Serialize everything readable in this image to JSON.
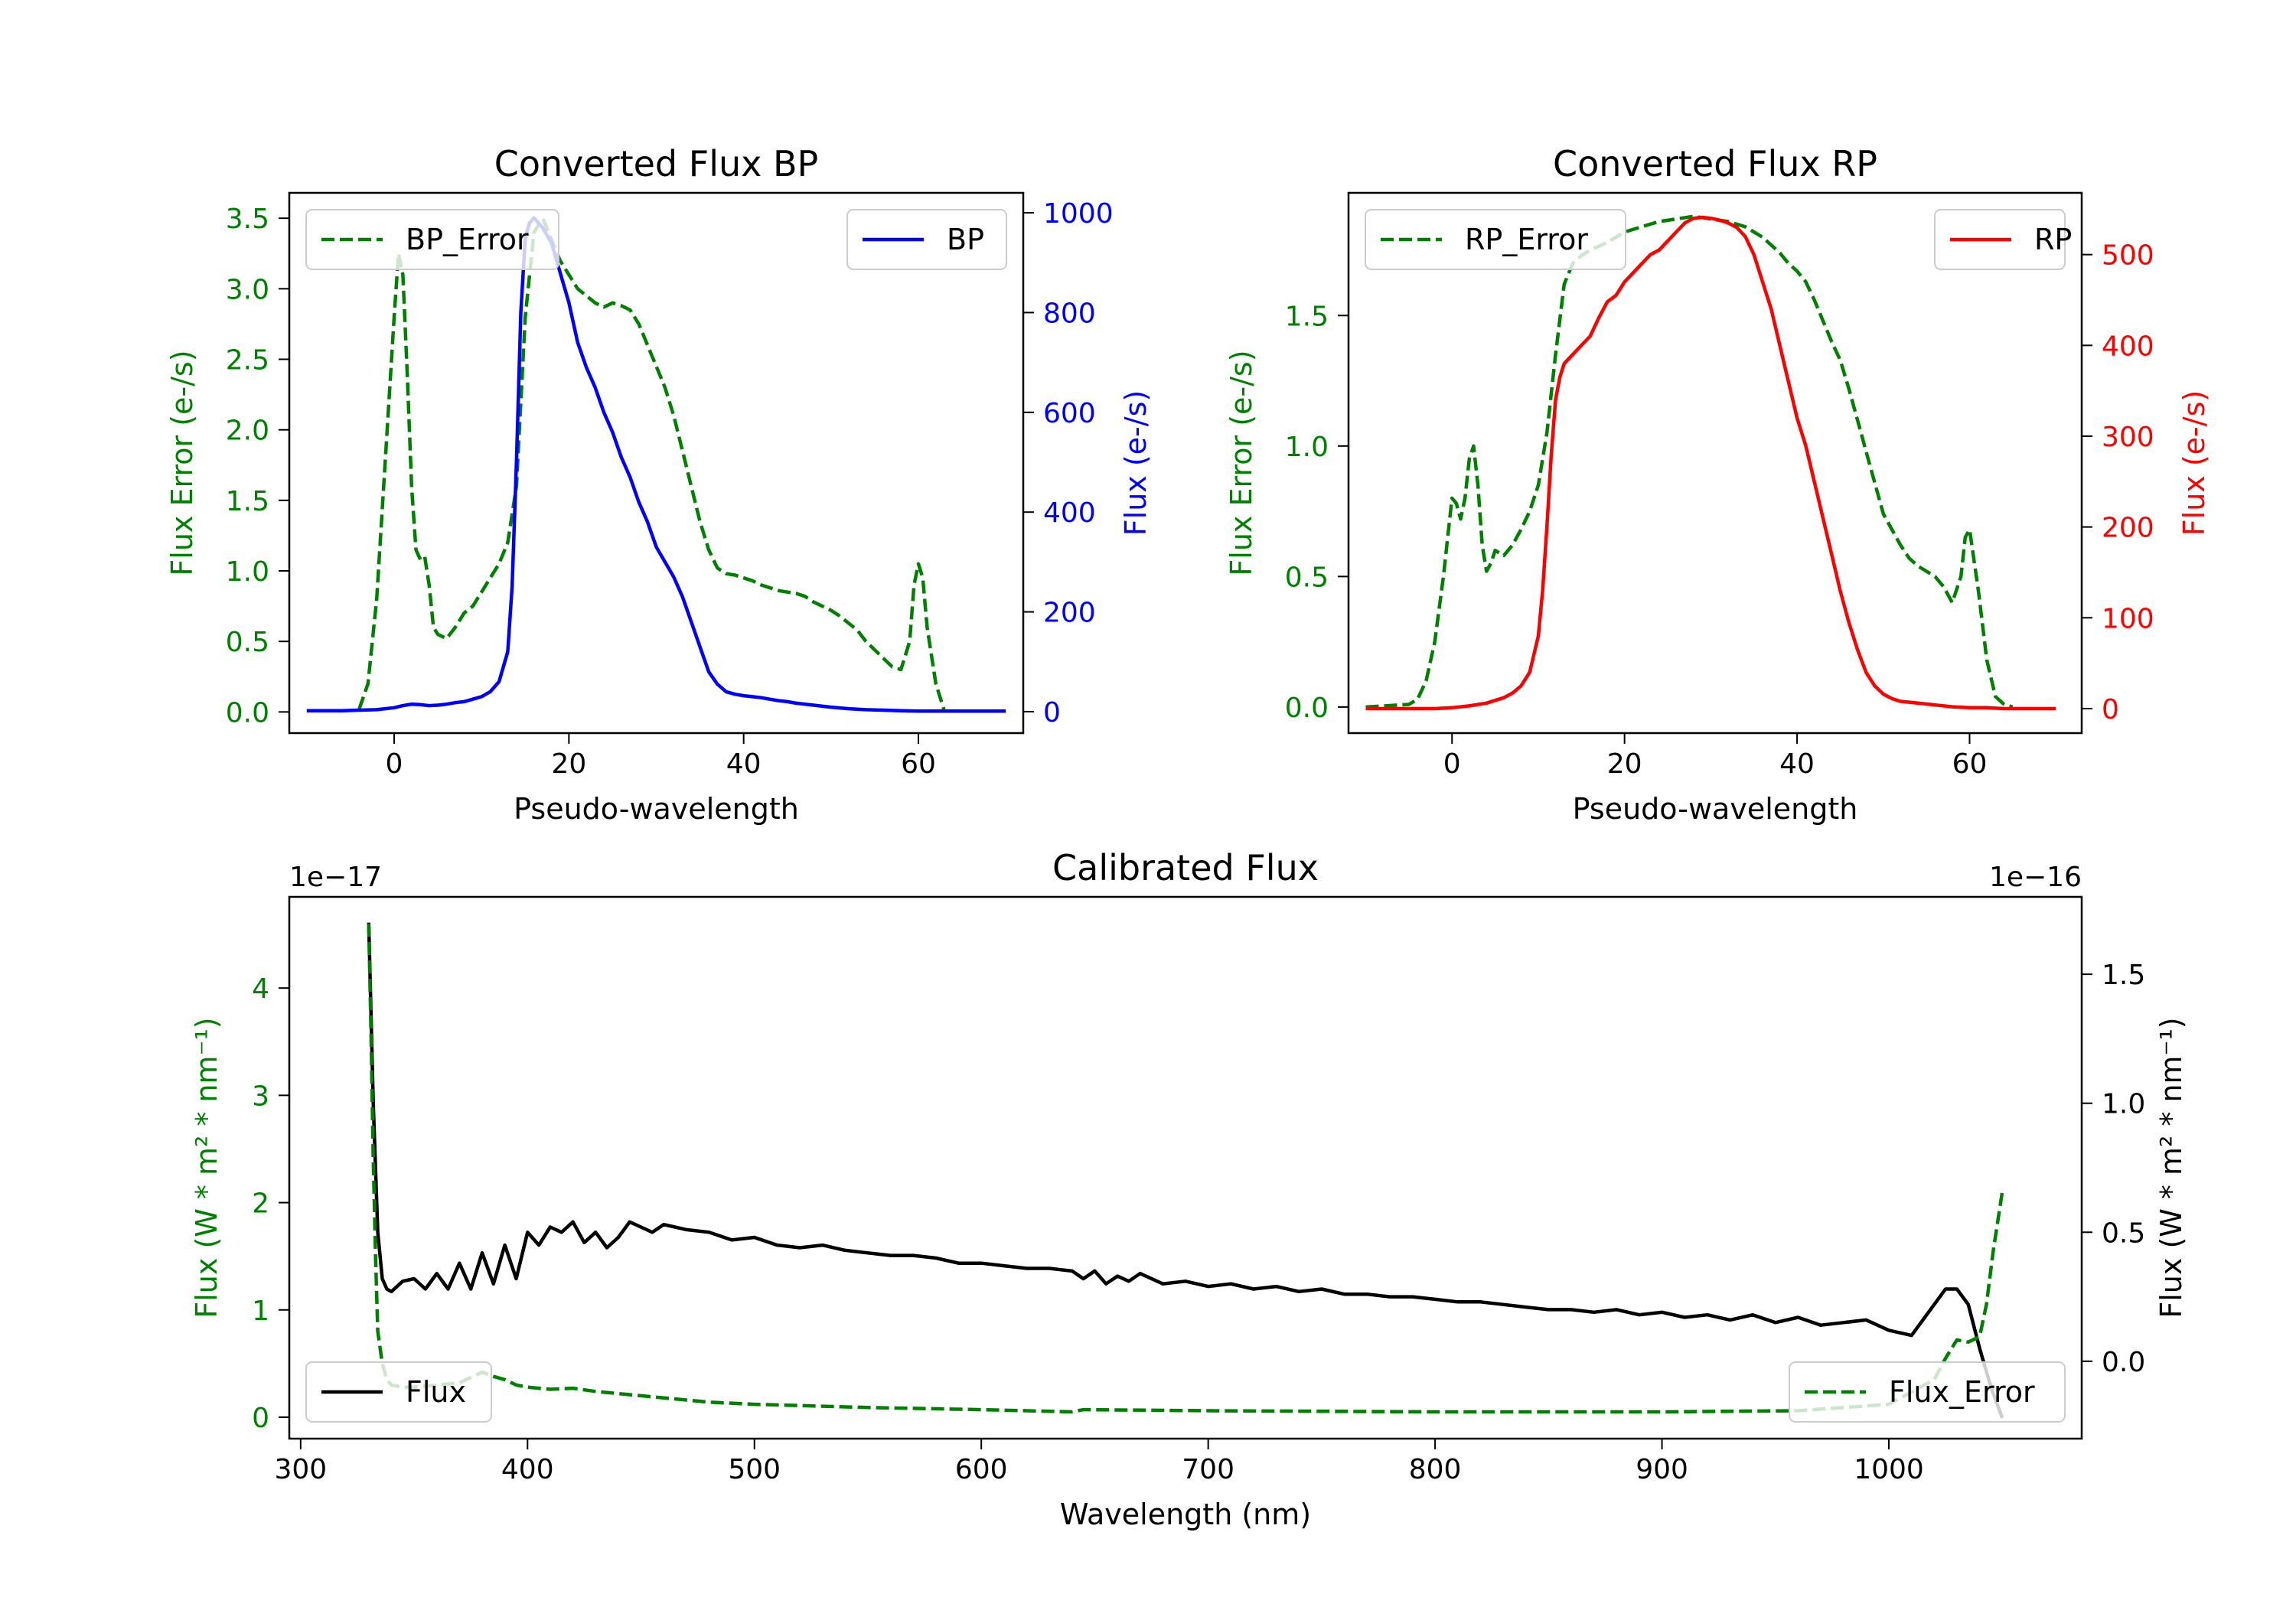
{
  "chart_data": [
    {
      "id": "bp",
      "type": "line",
      "title": "Converted Flux BP",
      "xlabel": "Pseudo-wavelength",
      "xlim": [
        -12,
        72
      ],
      "xticks": [
        0,
        20,
        40,
        60
      ],
      "left_axis": {
        "label": "Flux Error (e-/s)",
        "color": "#008000",
        "lim": [
          -0.15,
          3.68
        ],
        "ticks": [
          0.0,
          0.5,
          1.0,
          1.5,
          2.0,
          2.5,
          3.0,
          3.5
        ],
        "tick_labels": [
          "0.0",
          "0.5",
          "1.0",
          "1.5",
          "2.0",
          "2.5",
          "3.0",
          "3.5"
        ]
      },
      "right_axis": {
        "label": "Flux (e-/s)",
        "color": "#0000ff",
        "lim": [
          -43,
          1040
        ],
        "ticks": [
          0,
          200,
          400,
          600,
          800,
          1000
        ],
        "tick_labels": [
          "0",
          "200",
          "400",
          "600",
          "800",
          "1000"
        ]
      },
      "series": [
        {
          "name": "BP_Error",
          "axis": "left",
          "color": "#008000",
          "dash": true,
          "x": [
            -4,
            -3,
            -2,
            -1,
            0,
            0.5,
            1,
            1.5,
            2,
            2.5,
            3,
            3.5,
            4,
            4.5,
            5,
            6,
            7,
            8,
            9,
            10,
            11,
            12,
            13,
            14,
            15,
            16,
            17,
            18,
            19,
            20,
            21,
            22,
            23,
            24,
            25,
            26,
            27,
            28,
            29,
            30,
            31,
            32,
            33,
            34,
            35,
            36,
            37,
            38,
            39,
            40,
            41,
            42,
            43,
            44,
            45,
            46,
            47,
            48,
            49,
            50,
            51,
            52,
            53,
            54,
            55,
            56,
            57,
            58,
            59,
            59.5,
            60,
            60.5,
            61,
            62,
            63
          ],
          "values": [
            0.02,
            0.2,
            0.8,
            1.8,
            2.8,
            3.25,
            3.1,
            2.4,
            1.6,
            1.15,
            1.08,
            1.1,
            0.9,
            0.6,
            0.55,
            0.52,
            0.6,
            0.7,
            0.75,
            0.85,
            0.95,
            1.05,
            1.2,
            1.6,
            2.8,
            3.4,
            3.5,
            3.35,
            3.2,
            3.1,
            3.0,
            2.95,
            2.9,
            2.87,
            2.9,
            2.88,
            2.85,
            2.75,
            2.6,
            2.45,
            2.3,
            2.1,
            1.85,
            1.6,
            1.35,
            1.15,
            1.02,
            0.98,
            0.97,
            0.95,
            0.93,
            0.9,
            0.88,
            0.86,
            0.85,
            0.84,
            0.82,
            0.78,
            0.75,
            0.72,
            0.68,
            0.63,
            0.58,
            0.5,
            0.44,
            0.38,
            0.32,
            0.3,
            0.5,
            0.9,
            1.05,
            0.95,
            0.6,
            0.2,
            0.0
          ]
        },
        {
          "name": "BP",
          "axis": "right",
          "color": "#0000ff",
          "dash": false,
          "x": [
            -10,
            -6,
            -4,
            -2,
            0,
            1,
            2,
            3,
            4,
            5,
            6,
            7,
            8,
            9,
            10,
            11,
            12,
            13,
            13.5,
            14,
            14.5,
            15,
            15.5,
            16,
            17,
            18,
            19,
            20,
            21,
            22,
            23,
            24,
            25,
            26,
            27,
            28,
            29,
            30,
            31,
            32,
            33,
            34,
            35,
            36,
            37,
            38,
            39,
            40,
            41,
            42,
            43,
            44,
            45,
            46,
            47,
            48,
            50,
            52,
            54,
            56,
            58,
            60,
            62,
            64,
            66,
            68,
            70
          ],
          "values": [
            2,
            2,
            3,
            4,
            8,
            12,
            15,
            14,
            12,
            13,
            15,
            18,
            20,
            25,
            30,
            40,
            60,
            120,
            250,
            500,
            800,
            950,
            980,
            990,
            970,
            940,
            880,
            820,
            740,
            690,
            650,
            600,
            560,
            510,
            470,
            420,
            380,
            330,
            300,
            270,
            230,
            180,
            130,
            80,
            55,
            40,
            35,
            32,
            30,
            28,
            25,
            22,
            20,
            17,
            15,
            13,
            9,
            6,
            4,
            3,
            2,
            1,
            1,
            1,
            1,
            1,
            1
          ]
        }
      ],
      "legends": [
        {
          "label": "BP_Error",
          "position": "upper-left"
        },
        {
          "label": "BP",
          "position": "upper-right"
        }
      ]
    },
    {
      "id": "rp",
      "type": "line",
      "title": "Converted Flux RP",
      "xlabel": "Pseudo-wavelength",
      "xlim": [
        -12,
        73
      ],
      "xticks": [
        0,
        20,
        40,
        60
      ],
      "left_axis": {
        "label": "Flux Error (e-/s)",
        "color": "#008000",
        "lim": [
          -0.1,
          1.97
        ],
        "ticks": [
          0.0,
          0.5,
          1.0,
          1.5
        ],
        "tick_labels": [
          "0.0",
          "0.5",
          "1.0",
          "1.5"
        ]
      },
      "right_axis": {
        "label": "Flux (e-/s)",
        "color": "#ff0000",
        "lim": [
          -27,
          568
        ],
        "ticks": [
          0,
          100,
          200,
          300,
          400,
          500
        ],
        "tick_labels": [
          "0",
          "100",
          "200",
          "300",
          "400",
          "500"
        ]
      },
      "series": [
        {
          "name": "RP_Error",
          "axis": "left",
          "color": "#008000",
          "dash": true,
          "x": [
            -10,
            -5,
            -4,
            -3,
            -2,
            -1,
            0,
            0.5,
            1,
            1.5,
            2,
            2.5,
            3,
            3.5,
            4,
            4.5,
            5,
            6,
            7,
            8,
            9,
            10,
            11,
            12,
            13,
            14,
            15,
            16,
            18,
            20,
            22,
            24,
            26,
            28,
            30,
            32,
            34,
            36,
            37,
            38,
            39,
            40,
            41,
            42,
            43,
            44,
            45,
            46,
            47,
            48,
            49,
            50,
            51,
            52,
            53,
            54,
            55,
            56,
            57,
            58,
            59,
            59.5,
            60,
            61,
            62,
            63,
            64,
            65
          ],
          "values": [
            0.0,
            0.01,
            0.03,
            0.1,
            0.25,
            0.5,
            0.8,
            0.78,
            0.72,
            0.8,
            0.95,
            1.0,
            0.85,
            0.62,
            0.52,
            0.55,
            0.6,
            0.58,
            0.62,
            0.68,
            0.75,
            0.85,
            1.05,
            1.35,
            1.62,
            1.7,
            1.73,
            1.75,
            1.78,
            1.82,
            1.84,
            1.86,
            1.87,
            1.88,
            1.87,
            1.86,
            1.84,
            1.8,
            1.77,
            1.74,
            1.7,
            1.67,
            1.63,
            1.56,
            1.48,
            1.4,
            1.33,
            1.22,
            1.1,
            0.98,
            0.86,
            0.74,
            0.68,
            0.62,
            0.57,
            0.54,
            0.52,
            0.5,
            0.46,
            0.4,
            0.5,
            0.65,
            0.68,
            0.45,
            0.18,
            0.04,
            0.01,
            0.0
          ]
        },
        {
          "name": "RP",
          "axis": "right",
          "color": "#ff0000",
          "dash": false,
          "x": [
            -10,
            -4,
            -2,
            0,
            2,
            4,
            6,
            7,
            8,
            9,
            10,
            10.5,
            11,
            11.5,
            12,
            12.5,
            13,
            14,
            15,
            16,
            17,
            18,
            19,
            20,
            21,
            22,
            23,
            24,
            25,
            26,
            27,
            28,
            29,
            30,
            31,
            32,
            33,
            34,
            35,
            36,
            37,
            38,
            39,
            40,
            41,
            42,
            43,
            44,
            45,
            46,
            47,
            48,
            49,
            50,
            51,
            52,
            54,
            56,
            58,
            60,
            62,
            64,
            66,
            68,
            70
          ],
          "values": [
            0,
            0,
            0,
            1,
            3,
            6,
            12,
            17,
            25,
            40,
            80,
            130,
            200,
            280,
            340,
            365,
            380,
            390,
            400,
            410,
            430,
            448,
            455,
            470,
            480,
            490,
            500,
            505,
            515,
            525,
            535,
            540,
            541,
            540,
            538,
            535,
            530,
            520,
            500,
            470,
            440,
            400,
            360,
            320,
            290,
            250,
            210,
            170,
            130,
            95,
            65,
            40,
            25,
            16,
            11,
            8,
            6,
            4,
            2,
            1,
            1,
            0,
            0,
            0,
            0
          ]
        }
      ],
      "legends": [
        {
          "label": "RP_Error",
          "position": "upper-left"
        },
        {
          "label": "RP",
          "position": "upper-right"
        }
      ]
    },
    {
      "id": "cal",
      "type": "line",
      "title": "Calibrated Flux",
      "xlabel": "Wavelength (nm)",
      "xlim": [
        295,
        1085
      ],
      "xticks": [
        300,
        400,
        500,
        600,
        700,
        800,
        900,
        1000
      ],
      "left_axis": {
        "label": "Flux (W * m² * nm⁻¹)",
        "color": "#008000",
        "offset": "1e−17",
        "lim": [
          -0.2,
          4.85
        ],
        "ticks": [
          0,
          1,
          2,
          3,
          4
        ],
        "tick_labels": [
          "0",
          "1",
          "2",
          "3",
          "4"
        ]
      },
      "right_axis": {
        "label": "Flux (W * m² * nm⁻¹)",
        "color": "#000000",
        "offset": "1e−16",
        "lim": [
          -0.3,
          1.8
        ],
        "ticks": [
          0.0,
          0.5,
          1.0,
          1.5
        ],
        "tick_labels": [
          "0.0",
          "0.5",
          "1.0",
          "1.5"
        ]
      },
      "series": [
        {
          "name": "Flux",
          "axis": "right",
          "color": "#000000",
          "dash": false,
          "x": [
            330,
            332,
            334,
            336,
            338,
            340,
            345,
            350,
            355,
            360,
            365,
            370,
            375,
            380,
            385,
            390,
            395,
            400,
            405,
            410,
            415,
            420,
            425,
            430,
            435,
            440,
            445,
            450,
            455,
            460,
            465,
            470,
            480,
            490,
            500,
            510,
            520,
            530,
            540,
            550,
            560,
            570,
            580,
            590,
            600,
            610,
            620,
            630,
            640,
            645,
            650,
            655,
            660,
            665,
            670,
            680,
            690,
            700,
            710,
            720,
            730,
            740,
            750,
            760,
            770,
            780,
            790,
            800,
            810,
            820,
            830,
            840,
            850,
            860,
            870,
            880,
            890,
            900,
            910,
            920,
            930,
            940,
            950,
            960,
            970,
            980,
            990,
            1000,
            1010,
            1020,
            1025,
            1030,
            1035,
            1040,
            1045,
            1050
          ],
          "values": [
            1.7,
            1.0,
            0.5,
            0.32,
            0.28,
            0.27,
            0.31,
            0.32,
            0.28,
            0.34,
            0.28,
            0.38,
            0.28,
            0.42,
            0.3,
            0.45,
            0.32,
            0.5,
            0.45,
            0.52,
            0.5,
            0.54,
            0.46,
            0.5,
            0.44,
            0.48,
            0.54,
            0.52,
            0.5,
            0.53,
            0.52,
            0.51,
            0.5,
            0.47,
            0.48,
            0.45,
            0.44,
            0.45,
            0.43,
            0.42,
            0.41,
            0.41,
            0.4,
            0.38,
            0.38,
            0.37,
            0.36,
            0.36,
            0.35,
            0.32,
            0.35,
            0.3,
            0.33,
            0.31,
            0.34,
            0.3,
            0.31,
            0.29,
            0.3,
            0.28,
            0.29,
            0.27,
            0.28,
            0.26,
            0.26,
            0.25,
            0.25,
            0.24,
            0.23,
            0.23,
            0.22,
            0.21,
            0.2,
            0.2,
            0.19,
            0.2,
            0.18,
            0.19,
            0.17,
            0.18,
            0.16,
            0.18,
            0.15,
            0.17,
            0.14,
            0.15,
            0.16,
            0.12,
            0.1,
            0.22,
            0.28,
            0.28,
            0.22,
            0.05,
            -0.1,
            -0.22
          ]
        },
        {
          "name": "Flux_Error",
          "axis": "left",
          "color": "#008000",
          "dash": true,
          "x": [
            330,
            331,
            332,
            333,
            334,
            336,
            338,
            340,
            345,
            350,
            360,
            370,
            380,
            385,
            390,
            395,
            400,
            410,
            420,
            430,
            440,
            450,
            460,
            480,
            500,
            550,
            600,
            640,
            645,
            700,
            800,
            900,
            960,
            1000,
            1020,
            1025,
            1030,
            1035,
            1040,
            1043,
            1046,
            1050
          ],
          "values": [
            4.6,
            3.6,
            2.4,
            1.5,
            0.8,
            0.5,
            0.35,
            0.3,
            0.28,
            0.28,
            0.3,
            0.32,
            0.42,
            0.38,
            0.35,
            0.3,
            0.28,
            0.26,
            0.27,
            0.24,
            0.22,
            0.2,
            0.18,
            0.14,
            0.12,
            0.09,
            0.07,
            0.05,
            0.07,
            0.06,
            0.05,
            0.05,
            0.06,
            0.12,
            0.35,
            0.55,
            0.72,
            0.7,
            0.75,
            1.05,
            1.55,
            2.1
          ]
        }
      ],
      "legends": [
        {
          "label": "Flux",
          "position": "lower-left"
        },
        {
          "label": "Flux_Error",
          "position": "lower-right"
        }
      ]
    }
  ]
}
